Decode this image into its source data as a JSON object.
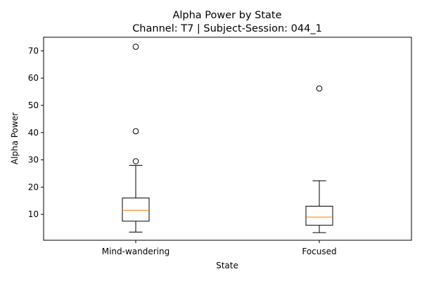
{
  "chart_data": {
    "type": "box",
    "title_line1": "Alpha Power by State",
    "title_line2": "Channel: T7 | Subject-Session: 044_1",
    "xlabel": "State",
    "ylabel": "Alpha Power",
    "ylim": [
      0.5,
      75.0
    ],
    "yticks": [
      10,
      20,
      30,
      40,
      50,
      60,
      70
    ],
    "categories": [
      "Mind-wandering",
      "Focused"
    ],
    "boxes": [
      {
        "name": "Mind-wandering",
        "whisker_low": 3.5,
        "q1": 7.5,
        "median": 11.5,
        "q3": 16.0,
        "whisker_high": 28.0,
        "outliers": [
          29.5,
          40.5,
          71.5
        ]
      },
      {
        "name": "Focused",
        "whisker_low": 3.3,
        "q1": 6.0,
        "median": 9.0,
        "q3": 13.0,
        "whisker_high": 22.3,
        "outliers": [
          56.2
        ]
      }
    ],
    "colors": {
      "box": "#000000",
      "median": "#ff7f0e",
      "outlier_edge": "#000000"
    }
  }
}
